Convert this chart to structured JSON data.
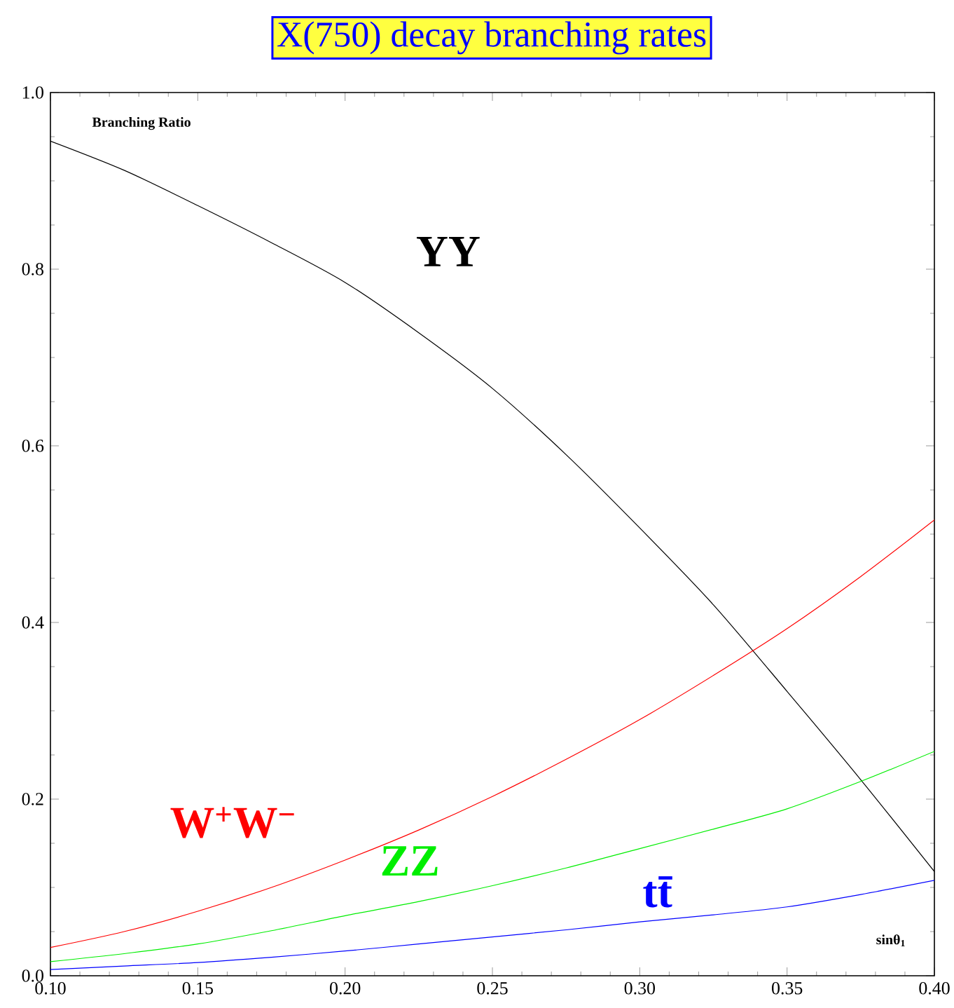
{
  "chart_data": {
    "type": "line",
    "title": "X(750) decay branching rates",
    "xlabel": "sinθ$_{1}$",
    "ylabel": "Branching Ratio",
    "x": [
      0.1,
      0.125,
      0.15,
      0.175,
      0.2,
      0.225,
      0.25,
      0.275,
      0.3,
      0.325,
      0.35,
      0.375,
      0.4
    ],
    "series": [
      {
        "name": "YY",
        "color": "#000000",
        "values": [
          0.945,
          0.912,
          0.872,
          0.83,
          0.785,
          0.728,
          0.665,
          0.59,
          0.507,
          0.42,
          0.322,
          0.222,
          0.118
        ]
      },
      {
        "name": "W$^{+}$W$^{−}$",
        "color": "#ff0000",
        "values": [
          0.032,
          0.05,
          0.073,
          0.1,
          0.131,
          0.165,
          0.203,
          0.245,
          0.29,
          0.34,
          0.393,
          0.452,
          0.516
        ]
      },
      {
        "name": "ZZ",
        "color": "#00ee00",
        "values": [
          0.016,
          0.025,
          0.036,
          0.051,
          0.068,
          0.084,
          0.102,
          0.122,
          0.144,
          0.166,
          0.189,
          0.22,
          0.254
        ]
      },
      {
        "name": "tt̄",
        "color": "#0000ff",
        "values": [
          0.007,
          0.011,
          0.015,
          0.021,
          0.028,
          0.036,
          0.044,
          0.052,
          0.061,
          0.069,
          0.078,
          0.092,
          0.108
        ]
      }
    ],
    "xlim": [
      0.1,
      0.4
    ],
    "ylim": [
      0.0,
      1.0
    ],
    "xticks": [
      {
        "value": 0.1,
        "label": "0.10"
      },
      0.15,
      {
        "value": 0.2,
        "label": "0.20"
      },
      0.25,
      {
        "value": 0.3,
        "label": "0.30"
      },
      0.35,
      {
        "value": 0.4,
        "label": "0.40"
      }
    ],
    "yticks": [
      {
        "value": 0.0,
        "label": "0.0"
      },
      0.2,
      0.4,
      0.6,
      0.8,
      {
        "value": 1.0,
        "label": "1.0"
      }
    ],
    "grid": false,
    "marker": "none",
    "line_style": "solid"
  }
}
